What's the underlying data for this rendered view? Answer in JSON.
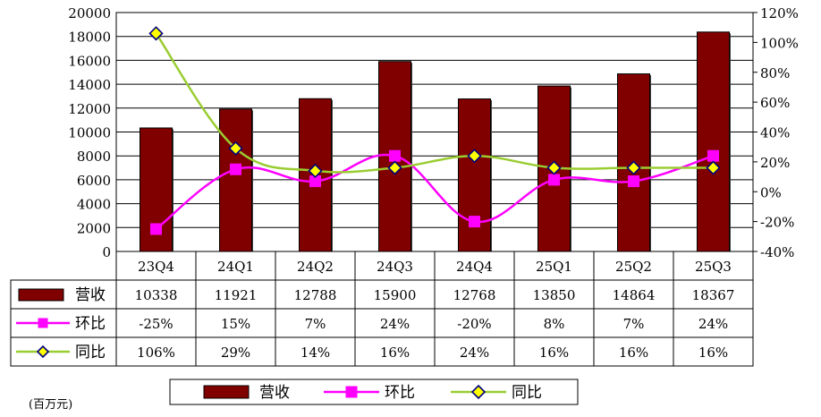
{
  "chart_data": {
    "type": "bar",
    "categories": [
      "23Q4",
      "24Q1",
      "24Q2",
      "24Q3",
      "24Q4",
      "25Q1",
      "25Q2",
      "25Q3"
    ],
    "ylim_left": [
      0,
      20000
    ],
    "left_ticks": [
      "0",
      "2000",
      "4000",
      "6000",
      "8000",
      "10000",
      "12000",
      "14000",
      "16000",
      "18000",
      "20000"
    ],
    "ylim_right": [
      -40,
      120
    ],
    "right_ticks": [
      "-40%",
      "-20%",
      "0%",
      "20%",
      "40%",
      "60%",
      "80%",
      "100%",
      "120%"
    ],
    "grid": true,
    "unit_label": "(百万元)",
    "legend_position": "bottom",
    "series": [
      {
        "name": "营收",
        "type": "bar",
        "axis": "left",
        "color": "#800000",
        "values": [
          10338,
          11921,
          12788,
          15900,
          12768,
          13850,
          14864,
          18367
        ],
        "labels": [
          "10338",
          "11921",
          "12788",
          "15900",
          "12768",
          "13850",
          "14864",
          "18367"
        ]
      },
      {
        "name": "环比",
        "type": "line",
        "axis": "right",
        "color": "#ff00ff",
        "marker": "square",
        "values": [
          -25,
          15,
          7,
          24,
          -20,
          8,
          7,
          24
        ],
        "labels": [
          "-25%",
          "15%",
          "7%",
          "24%",
          "-20%",
          "8%",
          "7%",
          "24%"
        ]
      },
      {
        "name": "同比",
        "type": "line",
        "axis": "right",
        "color": "#9acd32",
        "marker_color": "#ffff00",
        "marker_edge": "#000080",
        "marker": "diamond",
        "values": [
          106,
          29,
          14,
          16,
          24,
          16,
          16,
          16
        ],
        "labels": [
          "106%",
          "29%",
          "14%",
          "16%",
          "24%",
          "16%",
          "16%",
          "16%"
        ]
      }
    ]
  }
}
